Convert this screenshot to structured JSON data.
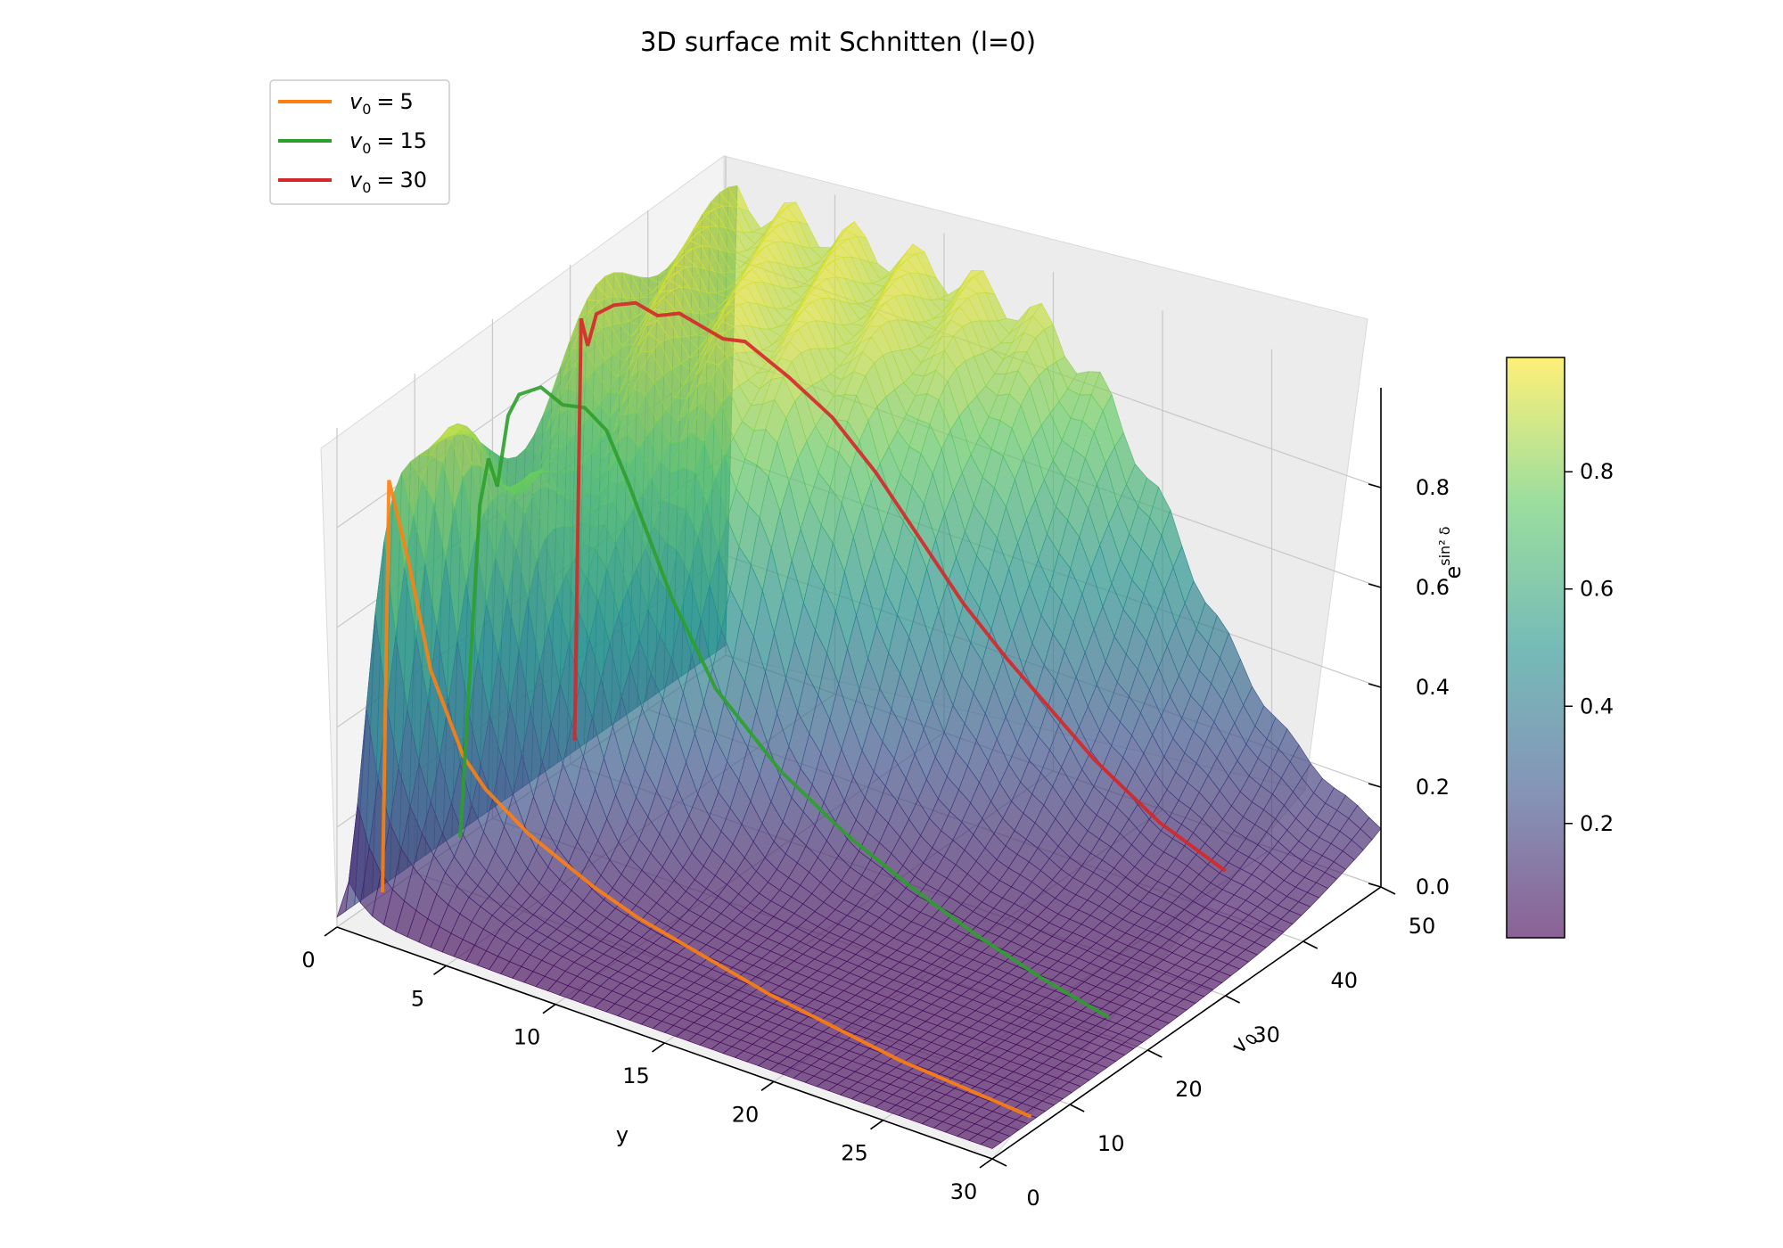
{
  "chart_data": {
    "type": "surface3d",
    "title": "3D surface mit Schnitten (l=0)",
    "xlabel": "y",
    "ylabel": "v0",
    "ylabel_base": "v",
    "ylabel_sub": "0",
    "zlabel": "e^{sin² δ}",
    "zlabel_base": "e",
    "zlabel_sup": "sin² δ",
    "x_ticks": [
      "0",
      "5",
      "10",
      "15",
      "20",
      "25",
      "30"
    ],
    "y_ticks": [
      "0",
      "10",
      "20",
      "30",
      "40",
      "50"
    ],
    "z_ticks": [
      "0.0",
      "0.2",
      "0.4",
      "0.6",
      "0.8"
    ],
    "colorbar_ticks": [
      "0.2",
      "0.4",
      "0.6",
      "0.8"
    ],
    "colormap": [
      "#440154",
      "#3b528b",
      "#21918c",
      "#5ec962",
      "#fde725"
    ],
    "xlim": [
      0,
      30
    ],
    "ylim": [
      0,
      50
    ],
    "zlim": [
      0,
      1
    ],
    "legend_position": "upper-left",
    "legend": [
      {
        "label": "v0 = 5",
        "var": "v",
        "sub": "0",
        "value": "5",
        "color": "#ff7f0e"
      },
      {
        "label": "v0 = 15",
        "var": "v",
        "sub": "0",
        "value": "15",
        "color": "#2ca02c"
      },
      {
        "label": "v0 = 30",
        "var": "v",
        "sub": "0",
        "value": "30",
        "color": "#d62728"
      }
    ],
    "series": [
      {
        "name": "v0 = 5",
        "v0": 5,
        "color": "#ff7f0e",
        "x": [
          0.3,
          0.6,
          0.9,
          1.5,
          2.5,
          4,
          5,
          6,
          7,
          8,
          10,
          12,
          15,
          18,
          21,
          24,
          27,
          30
        ],
        "z": [
          0.02,
          0.85,
          0.8,
          0.7,
          0.5,
          0.35,
          0.3,
          0.27,
          0.24,
          0.22,
          0.18,
          0.15,
          0.12,
          0.09,
          0.07,
          0.05,
          0.04,
          0.03
        ]
      },
      {
        "name": "v0 = 15",
        "v0": 15,
        "color": "#2ca02c",
        "x": [
          0.3,
          0.8,
          1.2,
          1.6,
          2,
          2.5,
          3,
          4,
          5,
          6,
          7,
          8,
          10,
          12,
          15,
          18,
          21,
          24,
          27,
          30
        ],
        "z": [
          0.02,
          0.4,
          0.7,
          0.8,
          0.75,
          0.9,
          0.95,
          0.98,
          0.96,
          0.97,
          0.94,
          0.85,
          0.65,
          0.5,
          0.38,
          0.3,
          0.24,
          0.19,
          0.15,
          0.12
        ]
      },
      {
        "name": "v0 = 30",
        "v0": 30,
        "color": "#d62728",
        "x": [
          0.2,
          0.5,
          0.8,
          1.2,
          2,
          3,
          4,
          5,
          6,
          7,
          8,
          9,
          10,
          12,
          14,
          16,
          18,
          20,
          22,
          24,
          27,
          30
        ],
        "z": [
          0.05,
          0.9,
          0.85,
          0.92,
          0.95,
          0.97,
          0.96,
          0.98,
          0.97,
          0.96,
          0.97,
          0.95,
          0.93,
          0.88,
          0.8,
          0.7,
          0.6,
          0.52,
          0.45,
          0.38,
          0.3,
          0.25
        ]
      }
    ]
  }
}
